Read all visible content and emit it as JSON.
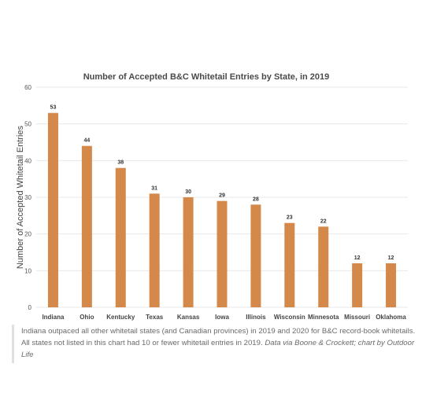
{
  "chart_data": {
    "type": "bar",
    "title": "Number of Accepted B&C Whitetail Entries by State, in 2019",
    "xlabel": "",
    "ylabel": "Number of Accepted Whitetail Entries",
    "categories": [
      "Indiana",
      "Ohio",
      "Kentucky",
      "Texas",
      "Kansas",
      "Iowa",
      "Illinois",
      "Wisconsin",
      "Minnesota",
      "Missouri",
      "Oklahoma"
    ],
    "values": [
      53,
      44,
      38,
      31,
      30,
      29,
      28,
      23,
      22,
      12,
      12
    ],
    "ylim": [
      0,
      60
    ],
    "yticks": [
      0,
      10,
      20,
      30,
      40,
      50,
      60
    ],
    "grid": true,
    "bar_color": "#d4894a",
    "grid_color": "#e8e8e8"
  },
  "caption": {
    "text": "Indiana outpaced all other whitetail states (and Canadian provinces) in 2019 and 2020 for B&C record-book whitetails. All states not listed in this chart had 10 or fewer whitetail entries in 2019.",
    "credit": "Data via Boone & Crockett; chart by Outdoor Life"
  }
}
